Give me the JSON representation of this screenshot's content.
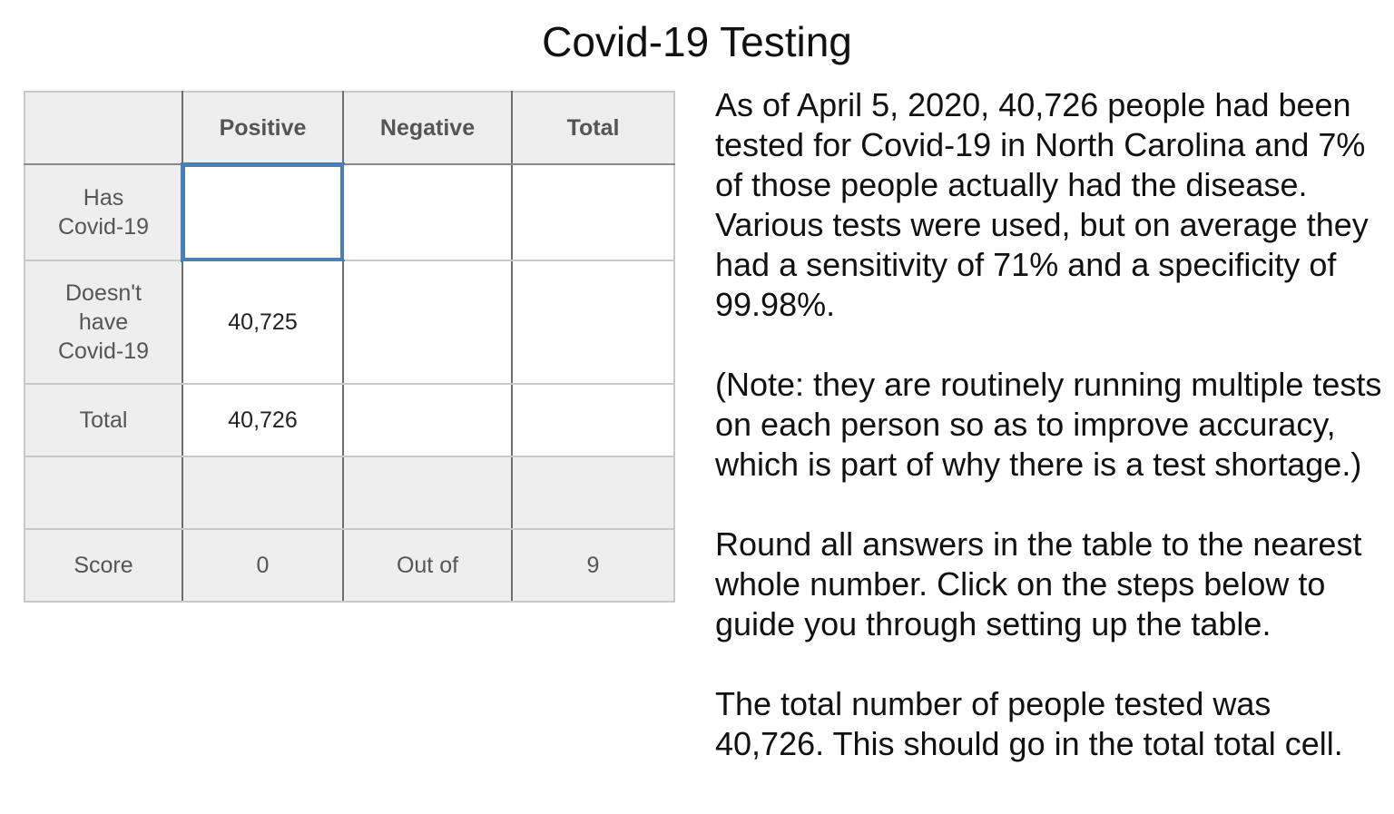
{
  "title": "Covid-19 Testing",
  "table": {
    "headers": [
      "",
      "Positive",
      "Negative",
      "Total"
    ],
    "rows": [
      {
        "label": "Has\nCovid-19",
        "positive": "",
        "negative": "",
        "total": ""
      },
      {
        "label": "Doesn't\nhave\nCovid-19",
        "positive": "40,725",
        "negative": "",
        "total": ""
      },
      {
        "label": "Total",
        "positive": "40,726",
        "negative": "",
        "total": ""
      }
    ],
    "score": {
      "label": "Score",
      "value": "0",
      "out_of_label": "Out of",
      "max": "9"
    }
  },
  "instructions": [
    "As of April 5, 2020, 40,726 people had been tested for Covid-19 in North Carolina and 7% of those people actually had the disease.  Various tests were used, but on average they had a sensitivity of 71% and a specificity of 99.98%.",
    "(Note: they are routinely running multiple tests on each person so as to improve accuracy, which is part of why there is a test shortage.)",
    "Round all answers in the table to the nearest whole number. Click on the steps below to guide you through setting up the table.",
    "The total number of people tested was 40,726. This should go in the total total cell."
  ],
  "colors": {
    "selected_cell_border": "#4a7fb5",
    "header_background": "#eeeeee"
  }
}
